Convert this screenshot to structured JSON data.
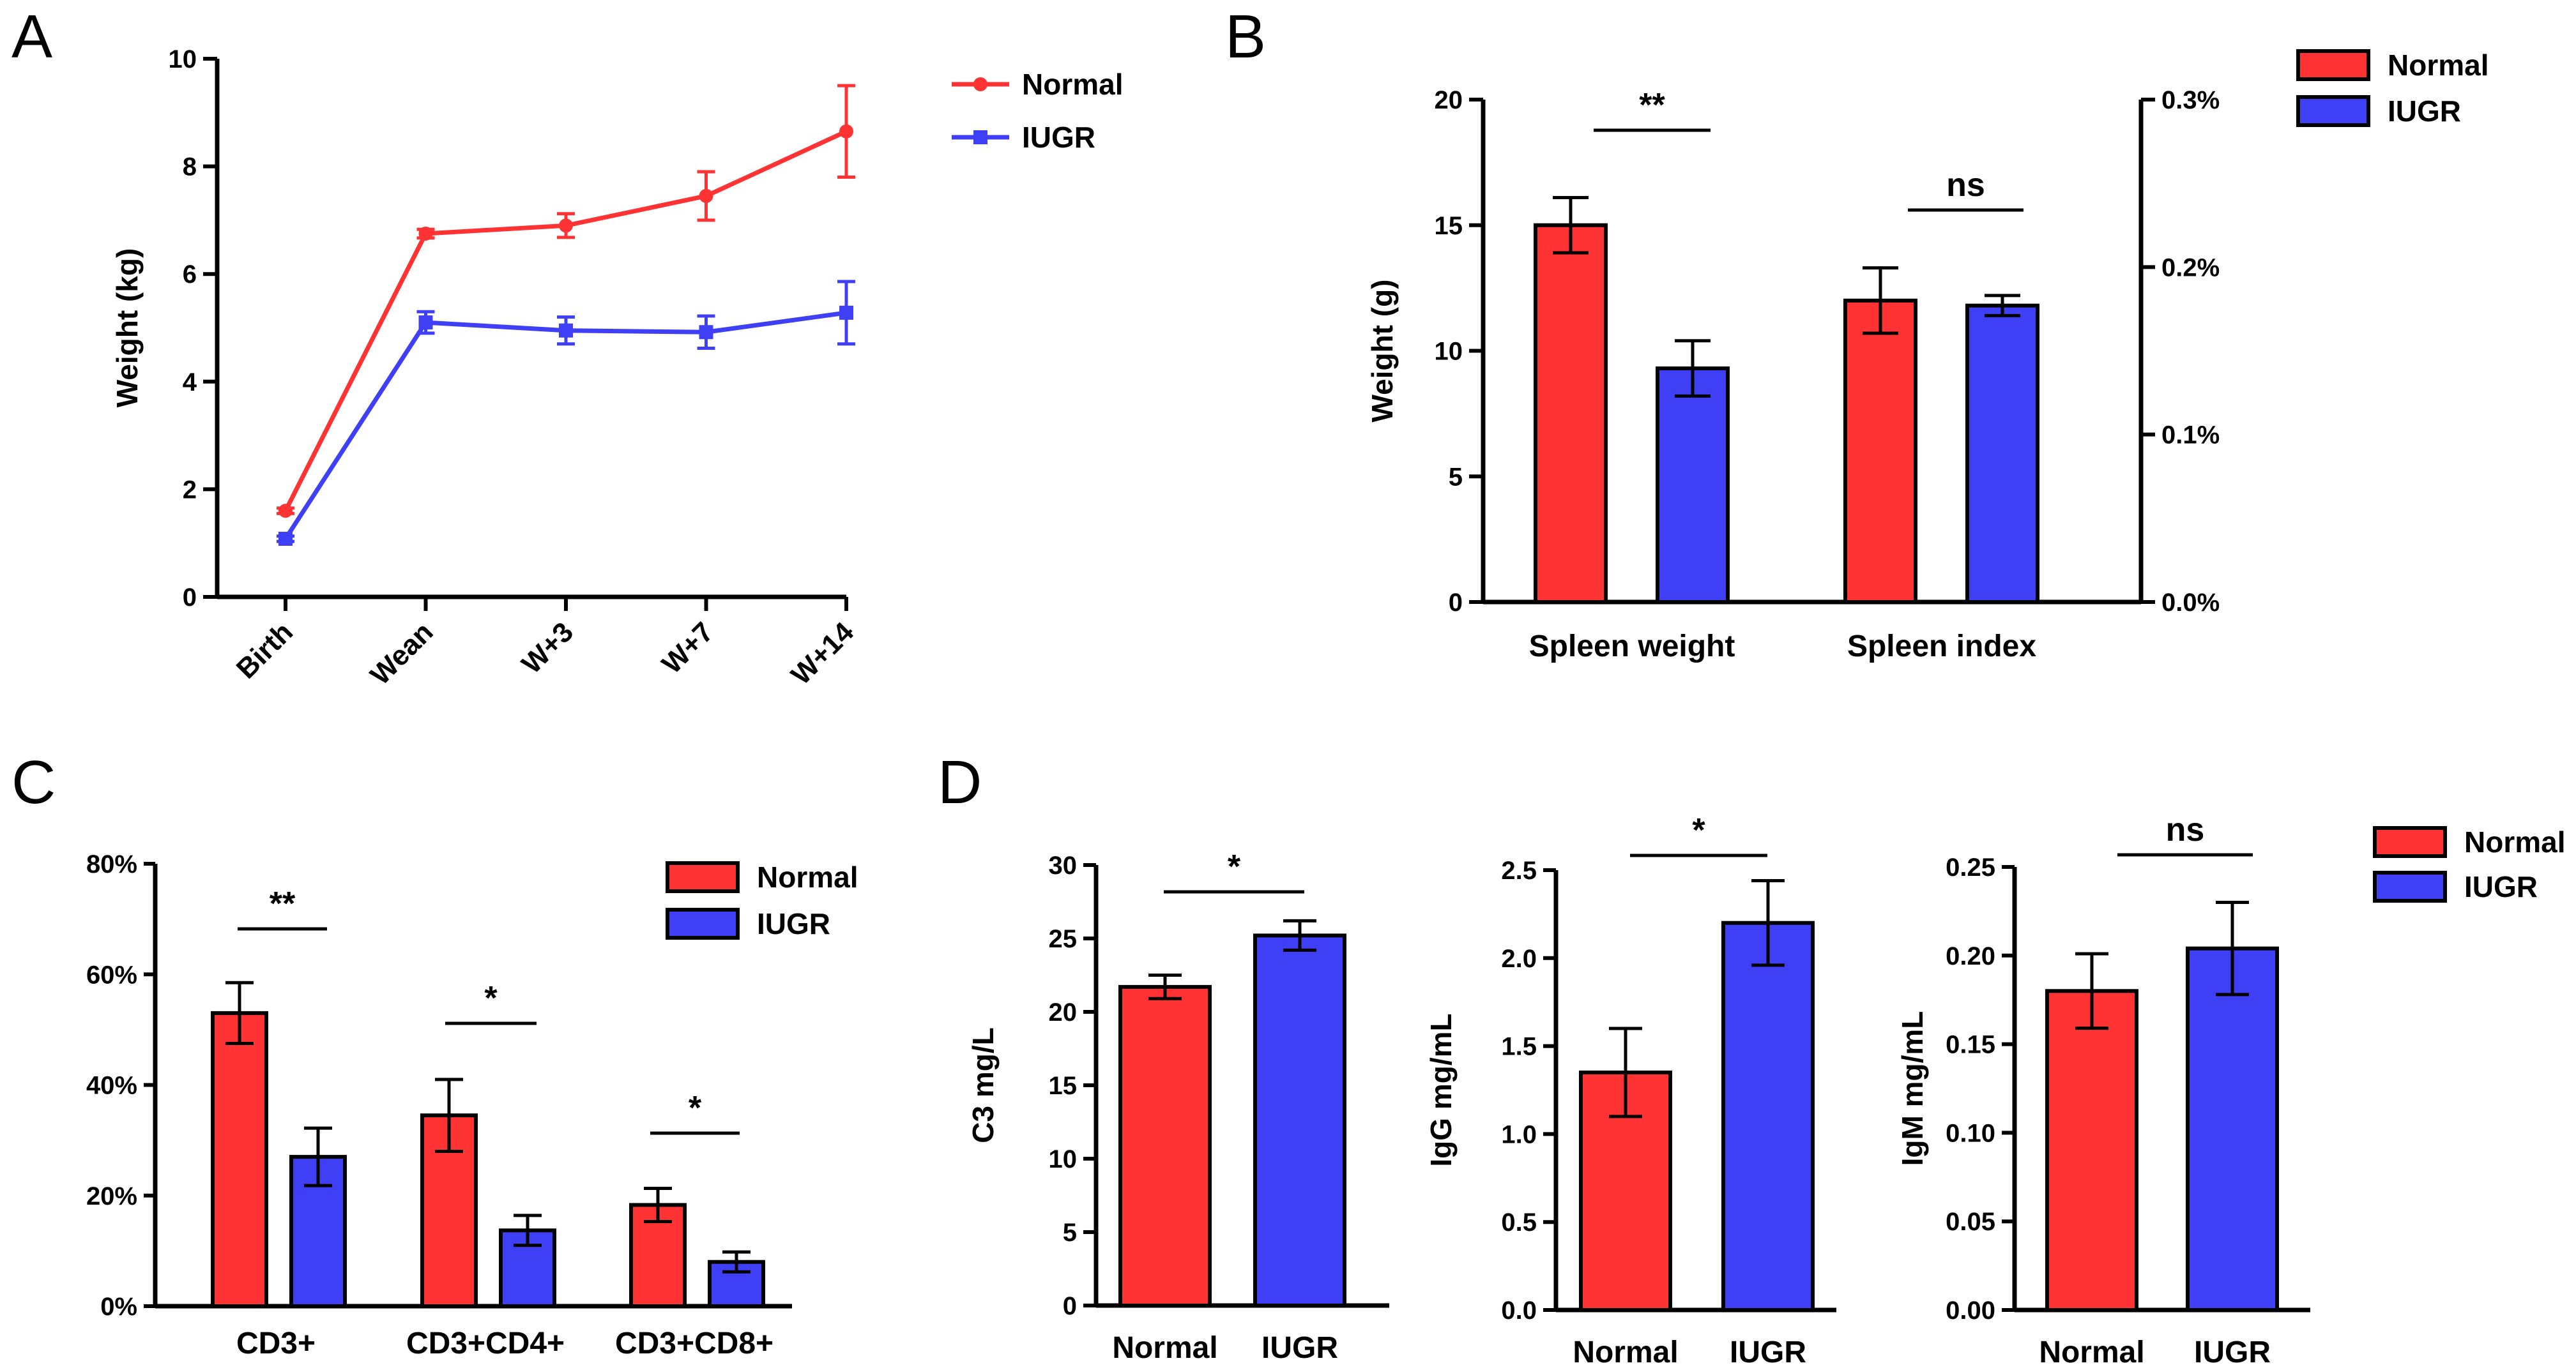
{
  "colors": {
    "normal": "#ff3333",
    "iugr": "#3f3ff5",
    "axis": "#000000"
  },
  "chart_data": [
    {
      "panel": "A",
      "type": "line",
      "x": [
        "Birth",
        "Wean",
        "W+3",
        "W+7",
        "W+14"
      ],
      "ylabel": "Weight (kg)",
      "ylim": [
        0,
        10
      ],
      "yticks": [
        0,
        2,
        4,
        6,
        8,
        10
      ],
      "legend": [
        "Normal",
        "IUGR"
      ],
      "series": [
        {
          "name": "Normal",
          "values": [
            1.6,
            6.75,
            6.9,
            7.45,
            8.65
          ],
          "errors": [
            0.05,
            0.08,
            0.22,
            0.45,
            0.85
          ]
        },
        {
          "name": "IUGR",
          "values": [
            1.08,
            5.1,
            4.95,
            4.92,
            5.28
          ],
          "errors": [
            0.05,
            0.2,
            0.25,
            0.3,
            0.58
          ]
        }
      ]
    },
    {
      "panel": "B",
      "type": "bar",
      "categories": [
        "Spleen weight",
        "Spleen index"
      ],
      "ylabel": "Weight (g)",
      "ylim": [
        0,
        20
      ],
      "yticks": [
        0,
        5,
        10,
        15,
        20
      ],
      "y2lim": [
        0,
        0.3
      ],
      "y2ticks": [
        "0.0%",
        "0.1%",
        "0.2%",
        "0.3%"
      ],
      "legend": [
        "Normal",
        "IUGR"
      ],
      "series": [
        {
          "name": "Normal",
          "values": [
            15.0,
            12.0
          ],
          "errors": [
            1.1,
            1.3
          ]
        },
        {
          "name": "IUGR",
          "values": [
            9.3,
            11.8
          ],
          "errors": [
            1.1,
            0.4
          ]
        }
      ],
      "significance": [
        "**",
        "ns"
      ]
    },
    {
      "panel": "C",
      "type": "bar",
      "categories": [
        "CD3+",
        "CD3+CD4+",
        "CD3+CD8+"
      ],
      "ylim": [
        0,
        80
      ],
      "yticks": [
        "0%",
        "20%",
        "40%",
        "60%",
        "80%"
      ],
      "legend": [
        "Normal",
        "IUGR"
      ],
      "series": [
        {
          "name": "Normal",
          "values": [
            53,
            34.5,
            18.3
          ],
          "errors": [
            5.5,
            6.5,
            3.0
          ]
        },
        {
          "name": "IUGR",
          "values": [
            27,
            13.7,
            8.0
          ],
          "errors": [
            5.2,
            2.7,
            1.8
          ]
        }
      ],
      "significance": [
        "**",
        "*",
        "*"
      ]
    },
    {
      "panel": "D",
      "type": "bar",
      "categories": [
        "Normal",
        "IUGR"
      ],
      "ylabel": "C3 mg/L",
      "ylim": [
        0,
        30
      ],
      "yticks": [
        "0",
        "5",
        "10",
        "15",
        "20",
        "25",
        "30"
      ],
      "values": [
        21.7,
        25.2
      ],
      "errors": [
        0.8,
        1.0
      ],
      "significance": "*"
    },
    {
      "panel": "D",
      "type": "bar",
      "categories": [
        "Normal",
        "IUGR"
      ],
      "ylabel": "IgG mg/mL",
      "ylim": [
        0,
        2.5
      ],
      "yticks": [
        "0.0",
        "0.5",
        "1.0",
        "1.5",
        "2.0",
        "2.5"
      ],
      "values": [
        1.35,
        2.2
      ],
      "errors": [
        0.25,
        0.24
      ],
      "significance": "*"
    },
    {
      "panel": "D",
      "type": "bar",
      "categories": [
        "Normal",
        "IUGR"
      ],
      "ylabel": "IgM mg/mL",
      "ylim": [
        0,
        0.25
      ],
      "yticks": [
        "0.00",
        "0.05",
        "0.10",
        "0.15",
        "0.20",
        "0.25"
      ],
      "values": [
        0.18,
        0.204
      ],
      "errors": [
        0.021,
        0.026
      ],
      "significance": "ns",
      "legend": [
        "Normal",
        "IUGR"
      ]
    }
  ]
}
